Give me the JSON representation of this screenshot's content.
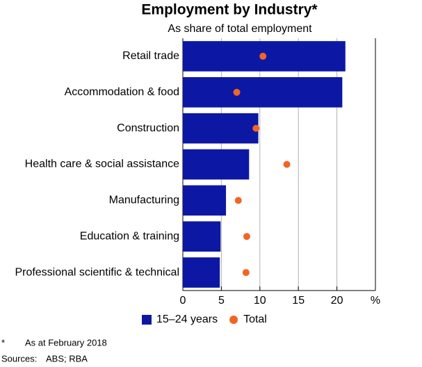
{
  "chart_data": {
    "type": "bar",
    "orientation": "horizontal",
    "title": "Employment by Industry*",
    "subtitle": "As share of total employment",
    "categories": [
      "Retail trade",
      "Accommodation & food",
      "Construction",
      "Health care & social assistance",
      "Manufacturing",
      "Education & training",
      "Professional scientific & technical"
    ],
    "series": [
      {
        "name": "15–24 years",
        "color": "#0c18a4",
        "marker": "bar",
        "values": [
          21.1,
          20.7,
          9.8,
          8.6,
          5.6,
          4.9,
          4.8
        ]
      },
      {
        "name": "Total",
        "color": "#f26522",
        "marker": "circle",
        "values": [
          10.4,
          7.0,
          9.5,
          13.5,
          7.2,
          8.3,
          8.2
        ]
      }
    ],
    "xlim": [
      0,
      25
    ],
    "xticks": [
      0,
      5,
      10,
      15,
      20,
      {
        "value": 25,
        "label": "%"
      }
    ],
    "grid": true,
    "legend": "bottom",
    "footnote": {
      "marker": "*",
      "text": "As at February 2018"
    },
    "sources": {
      "label": "Sources:",
      "text": "ABS; RBA"
    }
  }
}
